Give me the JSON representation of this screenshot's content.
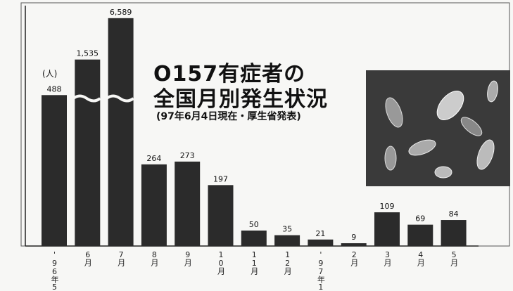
{
  "chart_data": {
    "type": "bar",
    "title": [
      "O157有症者の",
      "全国月別発生状況"
    ],
    "subtitle": "(97年6月4日現在・厚生省発表)",
    "unit": "(人)",
    "categories": [
      "'96年5月",
      "6月",
      "7月",
      "8月",
      "9月",
      "10月",
      "11月",
      "12月",
      "'97年1月",
      "2月",
      "3月",
      "4月",
      "5月"
    ],
    "values": [
      488,
      1535,
      6589,
      264,
      273,
      197,
      50,
      35,
      21,
      9,
      109,
      69,
      84
    ],
    "value_labels": [
      "488",
      "1,535",
      "6,589",
      "264",
      "273",
      "197",
      "50",
      "35",
      "21",
      "9",
      "109",
      "69",
      "84"
    ],
    "color": "#2b2b2b",
    "axis_break": true
  }
}
